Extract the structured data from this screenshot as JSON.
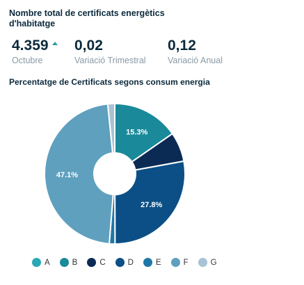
{
  "header": {
    "title": "Nombre total de certificats energètics d'habitatge"
  },
  "kpis": [
    {
      "value": "4.359",
      "label": "Octubre",
      "trend": "up"
    },
    {
      "value": "0,02",
      "label": "Variació Trimestral"
    },
    {
      "value": "0,12",
      "label": "Variació Anual"
    }
  ],
  "chart_data": {
    "type": "pie",
    "title": "Percentatge de Certificats segons consum energia",
    "categories": [
      "A",
      "B",
      "C",
      "D",
      "E",
      "F",
      "G"
    ],
    "values": [
      0.0,
      15.3,
      6.8,
      27.8,
      1.3,
      47.1,
      1.6
    ],
    "data_labels": [
      "",
      "15.3%",
      "",
      "27.8%",
      "",
      "47.1%",
      ""
    ],
    "colors": [
      "#2aa8b5",
      "#1a8a9a",
      "#0b2b55",
      "#0b4f86",
      "#1f77a6",
      "#5fa0bf",
      "#a7c3d4"
    ],
    "donut": true,
    "legend": "bottom"
  }
}
